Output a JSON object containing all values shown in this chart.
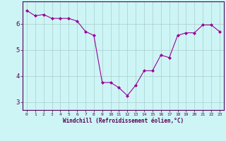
{
  "hours": [
    0,
    1,
    2,
    3,
    4,
    5,
    6,
    7,
    8,
    9,
    10,
    11,
    12,
    13,
    14,
    15,
    16,
    17,
    18,
    19,
    20,
    21,
    22,
    23
  ],
  "values": [
    6.5,
    6.3,
    6.35,
    6.2,
    6.2,
    6.2,
    6.1,
    5.7,
    5.55,
    3.75,
    3.75,
    3.55,
    3.25,
    3.65,
    4.2,
    4.2,
    4.8,
    4.7,
    5.55,
    5.65,
    5.65,
    5.95,
    5.95,
    5.7
  ],
  "line_color": "#990099",
  "marker": "D",
  "marker_size": 2,
  "bg_color": "#cef5f5",
  "grid_color": "#aacccc",
  "xlabel": "Windchill (Refroidissement éolien,°C)",
  "xlabel_color": "#550055",
  "tick_color": "#550055",
  "axis_color": "#550055",
  "ylim": [
    2.7,
    6.85
  ],
  "yticks": [
    3,
    4,
    5,
    6
  ],
  "xlim": [
    -0.5,
    23.5
  ],
  "xticks": [
    0,
    1,
    2,
    3,
    4,
    5,
    6,
    7,
    8,
    9,
    10,
    11,
    12,
    13,
    14,
    15,
    16,
    17,
    18,
    19,
    20,
    21,
    22,
    23
  ],
  "xtick_labels": [
    "0",
    "1",
    "2",
    "3",
    "4",
    "5",
    "6",
    "7",
    "8",
    "9",
    "10",
    "11",
    "12",
    "13",
    "14",
    "15",
    "16",
    "17",
    "18",
    "19",
    "20",
    "21",
    "22",
    "23"
  ]
}
